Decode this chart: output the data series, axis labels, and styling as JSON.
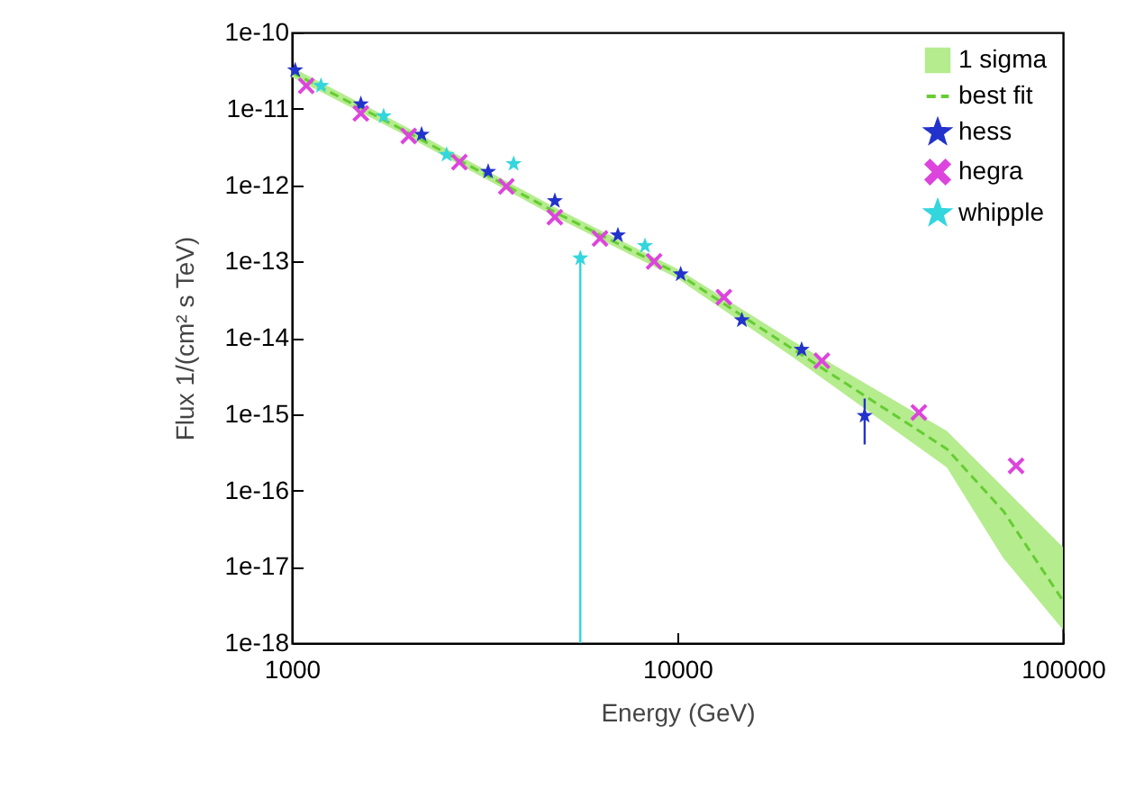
{
  "chart_data": {
    "type": "scatter",
    "xlabel": "Energy (GeV)",
    "ylabel": "Flux 1/(cm² s TeV)",
    "log": "xy",
    "grid": false,
    "legend": "top right",
    "xlim": [
      1000,
      100000
    ],
    "xticks": [
      1000,
      10000,
      100000
    ],
    "ylim": [
      1e-18,
      1e-10
    ],
    "yticks": [
      1e-18,
      1e-17,
      1e-16,
      1e-15,
      1e-14,
      1e-13,
      1e-12,
      1e-11,
      1e-10
    ],
    "series": [
      {
        "name": "1 sigma",
        "type": "area",
        "color": "#b5ec8e"
      },
      {
        "name": "best fit",
        "type": "line",
        "line_style": "dashed",
        "color": "#66cc33",
        "x": [
          1000,
          2000,
          5000,
          10000,
          20000,
          50000,
          70000,
          100000
        ],
        "values": [
          3e-11,
          4.9e-12,
          4e-13,
          7e-14,
          7e-15,
          3.5e-16,
          5.4e-17,
          3.6e-18
        ],
        "lower": [
          2.6e-11,
          4.3e-12,
          3.5e-13,
          6e-14,
          5.5e-15,
          2e-16,
          1.3e-17,
          1.5e-18
        ],
        "upper": [
          3.5e-11,
          5.6e-12,
          4.6e-13,
          8e-14,
          9e-15,
          6e-16,
          1.1e-16,
          1.8e-17
        ]
      },
      {
        "name": "hess",
        "marker": "star",
        "color": "#2233cc",
        "x": [
          1020,
          1510,
          2170,
          3230,
          4810,
          7010,
          10200,
          14700,
          21000,
          30600
        ],
        "values": [
          3.2e-11,
          1.15e-11,
          4.6e-12,
          1.5e-12,
          6.2e-13,
          2.2e-13,
          6.8e-14,
          1.7e-14,
          7e-15,
          9.5e-16
        ],
        "errors": [
          null,
          null,
          null,
          null,
          null,
          null,
          null,
          null,
          null,
          [
            4e-16,
            1.6e-15
          ]
        ]
      },
      {
        "name": "hegra",
        "marker": "cross",
        "color": "#dd44dd",
        "x": [
          1090,
          1510,
          2010,
          2720,
          3600,
          4810,
          6300,
          8700,
          13200,
          23700,
          42300,
          75600
        ],
        "values": [
          2e-11,
          8.7e-12,
          4.4e-12,
          2e-12,
          9.6e-13,
          3.8e-13,
          2e-13,
          1e-13,
          3.4e-14,
          5e-15,
          1.05e-15,
          2.1e-16
        ]
      },
      {
        "name": "whipple",
        "marker": "star",
        "color": "#33d6dd",
        "x": [
          1190,
          1730,
          2520,
          3760,
          5600,
          8240
        ],
        "values": [
          2e-11,
          8e-12,
          2.5e-12,
          1.9e-12,
          1.1e-13,
          1.6e-13
        ],
        "errors": [
          null,
          null,
          null,
          null,
          [
            1e-18,
            1.3e-13
          ],
          null
        ]
      }
    ]
  }
}
